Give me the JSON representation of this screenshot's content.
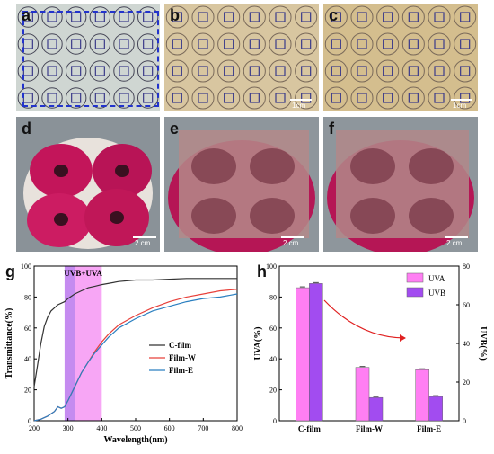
{
  "panels": {
    "a": "a",
    "b": "b",
    "c": "c",
    "d": "d",
    "e": "e",
    "f": "f",
    "g": "g",
    "h": "h"
  },
  "scalebars": {
    "top": "1cm",
    "bottom": "2 cm"
  },
  "chart_g": {
    "type": "line",
    "ylabel": "Transmittance(%)",
    "xlabel": "Wavelength(nm)",
    "band_label": "UVB+UVA",
    "xlim": [
      200,
      800
    ],
    "ylim": [
      0,
      100
    ],
    "xticks": [
      "200",
      "300",
      "400",
      "500",
      "600",
      "700",
      "800"
    ],
    "yticks": [
      "0",
      "20",
      "40",
      "60",
      "80",
      "100"
    ],
    "series": [
      {
        "name": "C-film",
        "color": "#333333",
        "x": [
          200,
          210,
          220,
          230,
          240,
          250,
          260,
          270,
          280,
          290,
          300,
          320,
          340,
          360,
          380,
          400,
          450,
          500,
          550,
          600,
          650,
          700,
          750,
          800
        ],
        "y": [
          22,
          36,
          50,
          61,
          67,
          71,
          73,
          75,
          76,
          77,
          79,
          82,
          84,
          86,
          87,
          88,
          90,
          91,
          91,
          91.5,
          92,
          92,
          92,
          92
        ]
      },
      {
        "name": "Film-W",
        "color": "#e8403a",
        "x": [
          200,
          220,
          240,
          260,
          270,
          280,
          290,
          300,
          320,
          340,
          360,
          380,
          400,
          420,
          450,
          500,
          550,
          600,
          650,
          700,
          750,
          800
        ],
        "y": [
          0,
          1,
          3,
          6,
          9,
          8,
          9,
          13,
          22,
          31,
          38,
          45,
          51,
          56,
          62,
          68,
          73,
          77,
          80,
          82,
          84,
          85
        ]
      },
      {
        "name": "Film-E",
        "color": "#2a7fc0",
        "x": [
          200,
          220,
          240,
          260,
          270,
          280,
          290,
          300,
          320,
          340,
          360,
          380,
          400,
          420,
          450,
          500,
          550,
          600,
          650,
          700,
          750,
          800
        ],
        "y": [
          0,
          1,
          3,
          6,
          9,
          8,
          9,
          13,
          22,
          31,
          38,
          44,
          49,
          54,
          60,
          66,
          71,
          74,
          77,
          79,
          80,
          82
        ]
      }
    ]
  },
  "chart_h": {
    "type": "bar",
    "ylabel_left": "UVA(%)",
    "ylabel_right": "UVB(%)",
    "categories": [
      "C-film",
      "Film-W",
      "Film-E"
    ],
    "ylim_left": [
      0,
      100
    ],
    "ylim_right": [
      0,
      80
    ],
    "yticks_left": [
      "0",
      "20",
      "40",
      "60",
      "80",
      "100"
    ],
    "yticks_right": [
      "0",
      "20",
      "40",
      "60",
      "80"
    ],
    "series": [
      {
        "name": "UVA",
        "color": "#ff7ff3",
        "values": [
          86,
          34.5,
          33
        ]
      },
      {
        "name": "UVB",
        "color": "#a24cf0",
        "values": [
          71,
          12,
          12.5
        ]
      }
    ]
  }
}
